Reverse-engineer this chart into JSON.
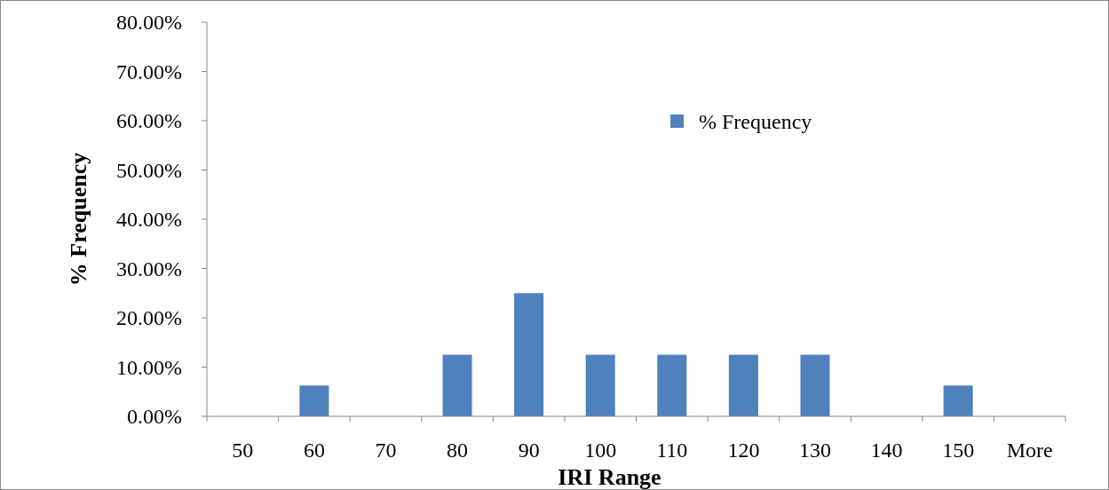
{
  "chart_data": {
    "type": "bar",
    "xlabel": "IRI Range",
    "ylabel": "% Frequency",
    "categories": [
      "50",
      "60",
      "70",
      "80",
      "90",
      "100",
      "110",
      "120",
      "130",
      "140",
      "150",
      "More"
    ],
    "series": [
      {
        "name": "% Frequency",
        "color": "#4f81bd",
        "values": [
          0,
          6.25,
          0,
          12.5,
          25,
          12.5,
          12.5,
          12.5,
          12.5,
          0,
          6.25,
          0
        ]
      }
    ],
    "ylim": [
      0,
      80
    ],
    "yticks": [
      {
        "value": 0,
        "label": "0.00%"
      },
      {
        "value": 10,
        "label": "10.00%"
      },
      {
        "value": 20,
        "label": "20.00%"
      },
      {
        "value": 30,
        "label": "30.00%"
      },
      {
        "value": 40,
        "label": "40.00%"
      },
      {
        "value": 50,
        "label": "50.00%"
      },
      {
        "value": 60,
        "label": "60.00%"
      },
      {
        "value": 70,
        "label": "70.00%"
      },
      {
        "value": 80,
        "label": "80.00%"
      }
    ],
    "grid": false,
    "legend": "top right"
  }
}
